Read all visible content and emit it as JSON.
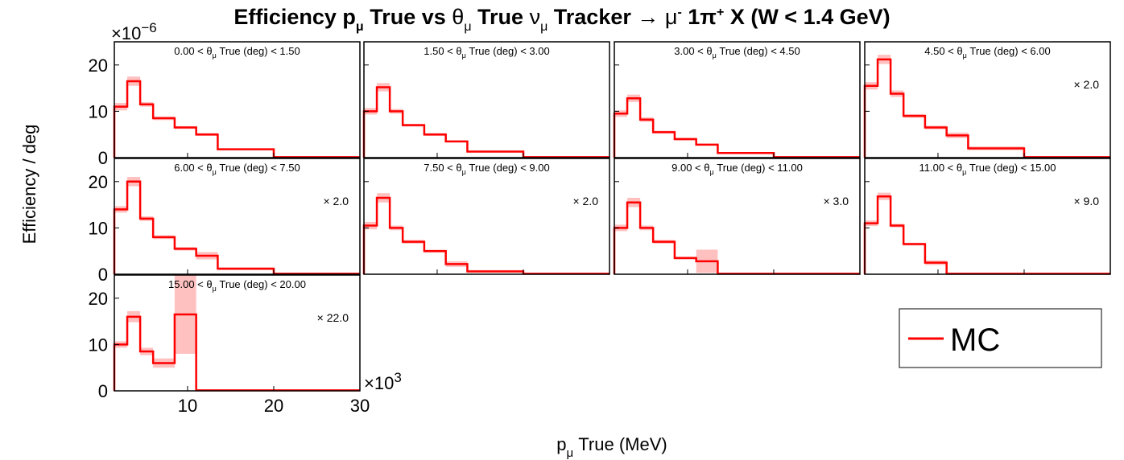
{
  "chart_data": {
    "type": "line",
    "title": "Efficiency pμ True vs θμ True νμ Tracker → μ- 1π+ X  (W < 1.4 GeV)",
    "title_parts": {
      "t1": "Efficiency p",
      "sub1": "μ",
      "t2": " True vs ",
      "t3": "θ",
      "sub2": "μ",
      "t4": " True ",
      "t5": "ν",
      "sub3": "μ",
      "t6": " Tracker → ",
      "t7": "μ",
      "sup1": "-",
      "t8": " 1π",
      "sup2": "+",
      "t9": " X  (W < 1.4 GeV)"
    },
    "ylabel": "Efficiency / deg",
    "xlabel_parts": {
      "main": "p",
      "sub": "μ",
      "rest": " True (MeV)"
    },
    "y_exponent_label": "×10",
    "y_exponent_sup": "−6",
    "x_exponent_label": "×10",
    "x_exponent_sup": "3",
    "xlim": [
      1.5,
      30
    ],
    "ylim": [
      0,
      25
    ],
    "xticks": [
      10,
      20,
      30
    ],
    "yticks": [
      0,
      10,
      20
    ],
    "bin_edges": [
      1.5,
      3,
      4.5,
      6,
      8.5,
      11,
      13.5,
      20,
      30
    ],
    "colors": {
      "line": "#ff0000",
      "band": "#ffc0c0",
      "frame": "#000000"
    },
    "legend": {
      "label": "MC",
      "placement": "bottom-right"
    },
    "panels": [
      {
        "label_pre": "0.00 < ",
        "label_sub": "μ",
        "label_post": " True (deg) < 1.50",
        "scale": "",
        "values": [
          11,
          16.5,
          11.5,
          8.5,
          6.5,
          5,
          1.8,
          0.1
        ],
        "errors": [
          0.8,
          1.0,
          0.5,
          0.4,
          0.3,
          0.3,
          0.2,
          0.05
        ]
      },
      {
        "label_pre": "1.50 < ",
        "label_sub": "μ",
        "label_post": " True (deg) < 3.00",
        "scale": "",
        "values": [
          10,
          15.2,
          10,
          7,
          5,
          3.5,
          1.3,
          0.1
        ],
        "errors": [
          0.7,
          0.9,
          0.5,
          0.3,
          0.3,
          0.2,
          0.2,
          0.05
        ]
      },
      {
        "label_pre": "3.00 < ",
        "label_sub": "μ",
        "label_post": " True (deg) < 4.50",
        "scale": "",
        "values": [
          9.5,
          12.8,
          8.2,
          5.5,
          4,
          2.8,
          1,
          0.1
        ],
        "errors": [
          0.7,
          0.8,
          0.5,
          0.3,
          0.3,
          0.2,
          0.2,
          0.05
        ]
      },
      {
        "label_pre": "4.50 < ",
        "label_sub": "μ",
        "label_post": " True (deg) < 6.00",
        "scale": "× 2.0",
        "values": [
          15.5,
          21.2,
          13.8,
          9,
          6.5,
          4.8,
          2,
          0.1
        ],
        "errors": [
          0.8,
          1.0,
          0.7,
          0.4,
          0.4,
          0.6,
          0.4,
          0.05
        ]
      },
      {
        "label_pre": "6.00 < ",
        "label_sub": "μ",
        "label_post": " True (deg) < 7.50",
        "scale": "× 2.0",
        "values": [
          14,
          20,
          12,
          8,
          5.5,
          4,
          1.2,
          0.1
        ],
        "errors": [
          0.7,
          1.0,
          0.5,
          0.4,
          0.4,
          0.8,
          0.3,
          0.05
        ]
      },
      {
        "label_pre": "7.50 < ",
        "label_sub": "μ",
        "label_post": " True (deg) < 9.00",
        "scale": "× 2.0",
        "values": [
          10.5,
          16.5,
          10,
          7,
          5,
          2.2,
          0.6,
          0.1
        ],
        "errors": [
          0.8,
          1.0,
          0.5,
          0.4,
          0.3,
          0.6,
          0.3,
          0.05
        ]
      },
      {
        "label_pre": "9.00 < ",
        "label_sub": "μ",
        "label_post": " True (deg) < 11.00",
        "scale": "× 3.0",
        "values": [
          10,
          15.5,
          10,
          7,
          3.5,
          2.8,
          0.1,
          0.1
        ],
        "errors": [
          0.7,
          1.0,
          0.5,
          0.4,
          0.3,
          2.5,
          0.05,
          0.05
        ]
      },
      {
        "label_pre": "11.00 < ",
        "label_sub": "μ",
        "label_post": " True (deg) < 15.00",
        "scale": "× 9.0",
        "values": [
          11,
          16.8,
          10.5,
          6.5,
          2.5,
          0.1,
          0.1,
          0.1
        ],
        "errors": [
          0.6,
          0.8,
          0.4,
          0.3,
          0.5,
          0.05,
          0.05,
          0.05
        ]
      },
      {
        "label_pre": "15.00 < ",
        "label_sub": "μ",
        "label_post": " True (deg) < 20.00",
        "scale": "× 22.0",
        "values": [
          10,
          16,
          8.5,
          6,
          16.5,
          0.1,
          0.1,
          0.1
        ],
        "errors": [
          0.7,
          1.2,
          0.8,
          1.0,
          8.5,
          0.05,
          0.05,
          0.05
        ]
      }
    ]
  }
}
